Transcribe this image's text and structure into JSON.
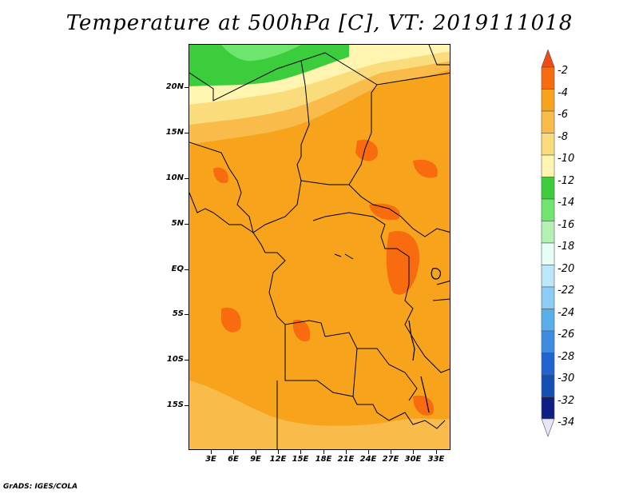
{
  "title": "Temperature at 500hPa [C], VT: 2019111018",
  "footer": "GrADS: IGES/COLA",
  "map": {
    "variable": "Temperature at 500hPa",
    "unit": "C",
    "valid_time": "2019111018",
    "lat_labels": [
      "20N",
      "15N",
      "10N",
      "5N",
      "EQ",
      "5S",
      "10S",
      "15S"
    ],
    "lon_labels": [
      "3E",
      "6E",
      "9E",
      "12E",
      "15E",
      "18E",
      "21E",
      "24E",
      "27E",
      "30E",
      "33E"
    ]
  },
  "legend": {
    "labels": [
      "-2",
      "-4",
      "-6",
      "-8",
      "-10",
      "-12",
      "-14",
      "-16",
      "-18",
      "-20",
      "-22",
      "-24",
      "-26",
      "-28",
      "-30",
      "-32",
      "-34"
    ],
    "colors": [
      "#f14b13",
      "#f86b0f",
      "#f7a41c",
      "#f9bb4a",
      "#fbdc7d",
      "#fff5b1",
      "#3ccd3c",
      "#6ee66e",
      "#b4f0b4",
      "#e6fff5",
      "#bce6fa",
      "#8ccdf5",
      "#5aafeb",
      "#3c8ce1",
      "#2064d2",
      "#1450b4",
      "#0f1e82",
      "#e6e6f5"
    ]
  }
}
